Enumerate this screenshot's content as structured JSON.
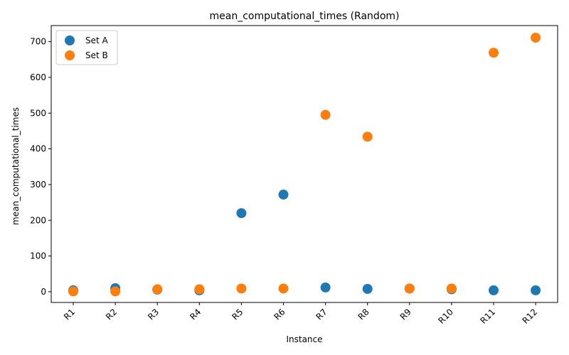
{
  "chart_data": {
    "type": "scatter",
    "title": "mean_computational_times (Random)",
    "xlabel": "Instance",
    "ylabel": "mean_computational_times",
    "categories": [
      "R1",
      "R2",
      "R3",
      "R4",
      "R5",
      "R6",
      "R7",
      "R8",
      "R9",
      "R10",
      "R11",
      "R12"
    ],
    "yticks": [
      0,
      100,
      200,
      300,
      400,
      500,
      600,
      700
    ],
    "ylim": [
      -30,
      745
    ],
    "grid": false,
    "legend_position": "top-left",
    "series": [
      {
        "name": "Set A",
        "color": "#1f77b4",
        "values": [
          4,
          10,
          6,
          4,
          220,
          272,
          12,
          8,
          9,
          7,
          4,
          4
        ]
      },
      {
        "name": "Set B",
        "color": "#ff7f0e",
        "values": [
          1,
          1,
          7,
          7,
          9,
          9,
          495,
          434,
          9,
          9,
          669,
          711
        ]
      }
    ]
  }
}
